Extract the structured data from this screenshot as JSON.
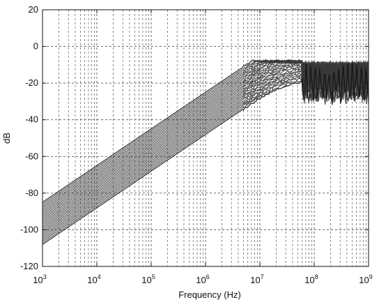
{
  "chart_data": {
    "type": "line",
    "title": "",
    "xlabel": "Frequency (Hz)",
    "ylabel": "dB",
    "xscale": "log",
    "xlim": [
      1000,
      1000000000
    ],
    "ylim": [
      -120,
      20
    ],
    "grid": true,
    "grid_style": "dashed, major and minor (log decades)",
    "x_ticks": [
      {
        "base": "10",
        "exp": "3",
        "value": 1000
      },
      {
        "base": "10",
        "exp": "4",
        "value": 10000
      },
      {
        "base": "10",
        "exp": "5",
        "value": 100000
      },
      {
        "base": "10",
        "exp": "6",
        "value": 1000000
      },
      {
        "base": "10",
        "exp": "7",
        "value": 10000000
      },
      {
        "base": "10",
        "exp": "8",
        "value": 100000000
      },
      {
        "base": "10",
        "exp": "9",
        "value": 1000000000
      }
    ],
    "y_ticks": [
      {
        "label": "20",
        "value": 20
      },
      {
        "label": "0",
        "value": 0
      },
      {
        "label": "-20",
        "value": -20
      },
      {
        "label": "-40",
        "value": -40
      },
      {
        "label": "-60",
        "value": -60
      },
      {
        "label": "-80",
        "value": -80
      },
      {
        "label": "-100",
        "value": -100
      },
      {
        "label": "-120",
        "value": -120
      }
    ],
    "series_description": "family of ~25 overlapping transfer-function curves; high-pass slope ~20 dB/decade, peaking near -8 dB at ~5e7 Hz, with resonant ripple above 1e8 Hz",
    "band": {
      "upper_db_at_1e3": -85,
      "lower_db_at_1e3": -108,
      "slope_db_per_decade": 20,
      "peak_freq": 50000000,
      "peak_db": -8,
      "ripple_min_db": -32
    },
    "series": [
      {
        "values": [
          [
            1000,
            -85
          ],
          [
            100000,
            -47
          ],
          [
            1000000,
            -25
          ],
          [
            3000000,
            -15
          ],
          [
            10000000,
            -10
          ],
          [
            50000000,
            -8
          ],
          [
            80000000,
            -10
          ],
          [
            150000000,
            -5
          ],
          [
            300000000,
            -6
          ],
          [
            1000000000,
            -4
          ]
        ]
      },
      {
        "values": [
          [
            1000,
            -90
          ],
          [
            100000,
            -51
          ],
          [
            1000000,
            -30
          ],
          [
            3000000,
            -18
          ],
          [
            10000000,
            -11
          ],
          [
            50000000,
            -8
          ],
          [
            80000000,
            -14
          ],
          [
            150000000,
            -8
          ],
          [
            300000000,
            -10
          ],
          [
            1000000000,
            -6
          ]
        ]
      },
      {
        "values": [
          [
            1000,
            -95
          ],
          [
            100000,
            -56
          ],
          [
            1000000,
            -35
          ],
          [
            3000000,
            -21
          ],
          [
            10000000,
            -12
          ],
          [
            50000000,
            -8
          ],
          [
            80000000,
            -20
          ],
          [
            150000000,
            -12
          ],
          [
            300000000,
            -16
          ],
          [
            1000000000,
            -9
          ]
        ]
      },
      {
        "values": [
          [
            1000,
            -100
          ],
          [
            100000,
            -61
          ],
          [
            1000000,
            -40
          ],
          [
            3000000,
            -24
          ],
          [
            10000000,
            -13
          ],
          [
            50000000,
            -8
          ],
          [
            80000000,
            -25
          ],
          [
            150000000,
            -16
          ],
          [
            300000000,
            -22
          ],
          [
            1000000000,
            -12
          ]
        ]
      },
      {
        "values": [
          [
            1000,
            -104
          ],
          [
            100000,
            -66
          ],
          [
            1000000,
            -45
          ],
          [
            3000000,
            -27
          ],
          [
            10000000,
            -13
          ],
          [
            50000000,
            -8
          ],
          [
            80000000,
            -30
          ],
          [
            150000000,
            -20
          ],
          [
            300000000,
            -28
          ],
          [
            1000000000,
            -16
          ]
        ]
      },
      {
        "values": [
          [
            1000,
            -108
          ],
          [
            100000,
            -70
          ],
          [
            1000000,
            -50
          ],
          [
            3000000,
            -30
          ],
          [
            10000000,
            -14
          ],
          [
            50000000,
            -8
          ],
          [
            80000000,
            -32
          ],
          [
            150000000,
            -24
          ],
          [
            300000000,
            -30
          ],
          [
            1000000000,
            -18
          ]
        ]
      }
    ],
    "colors": {
      "curves": "#3a3a3a",
      "outline": "#111111",
      "grid": "#555555",
      "background": "#ffffff"
    }
  }
}
